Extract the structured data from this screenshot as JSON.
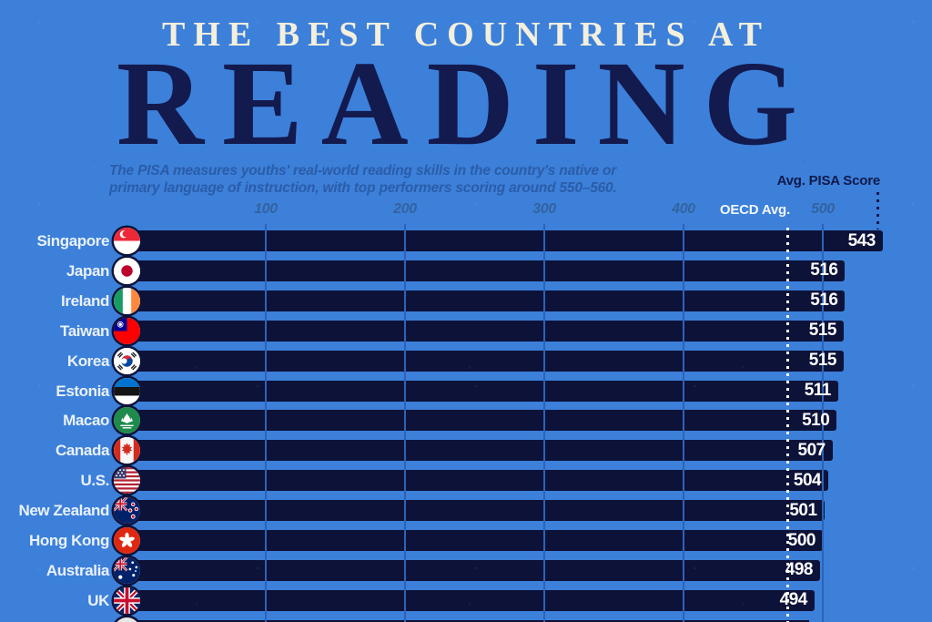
{
  "header": {
    "kicker": "THE BEST COUNTRIES AT",
    "title": "READING",
    "subtitle_line1": "The PISA measures youths' real-world reading skills in the country's native or",
    "subtitle_line2": "primary language of instruction, with top performers scoring around 550–560.",
    "axis_caption": "Avg. PISA Score"
  },
  "colors": {
    "background": "#3c80da",
    "bar": "#0d1238",
    "title_navy": "#131a4e",
    "kicker_cream": "#f4efdc",
    "subtitle_blue": "#2b5ca8",
    "gridline": "#2c63b8",
    "score_text": "#ffffff"
  },
  "chart_data": {
    "type": "bar",
    "orientation": "horizontal",
    "title": "THE BEST COUNTRIES AT READING",
    "value_axis_label": "Avg. PISA Score",
    "x_ticks": [
      100,
      200,
      300,
      400,
      500
    ],
    "xlim": [
      0,
      578
    ],
    "grid": true,
    "reference_line": {
      "label": "OECD Avg.",
      "value": 475
    },
    "categories": [
      "Singapore",
      "Japan",
      "Ireland",
      "Taiwan",
      "Korea",
      "Estonia",
      "Macao",
      "Canada",
      "U.S.",
      "New Zealand",
      "Hong Kong",
      "Australia",
      "UK"
    ],
    "values": [
      543,
      516,
      516,
      515,
      515,
      511,
      510,
      507,
      504,
      501,
      500,
      498,
      494
    ],
    "rows": [
      {
        "country": "Singapore",
        "flag": "sg",
        "value": 543
      },
      {
        "country": "Japan",
        "flag": "jp",
        "value": 516
      },
      {
        "country": "Ireland",
        "flag": "ie",
        "value": 516
      },
      {
        "country": "Taiwan",
        "flag": "tw",
        "value": 515
      },
      {
        "country": "Korea",
        "flag": "kr",
        "value": 515
      },
      {
        "country": "Estonia",
        "flag": "ee",
        "value": 511
      },
      {
        "country": "Macao",
        "flag": "mo",
        "value": 510
      },
      {
        "country": "Canada",
        "flag": "ca",
        "value": 507
      },
      {
        "country": "U.S.",
        "flag": "us",
        "value": 504
      },
      {
        "country": "New Zealand",
        "flag": "nz",
        "value": 501
      },
      {
        "country": "Hong Kong",
        "flag": "hk",
        "value": 500
      },
      {
        "country": "Australia",
        "flag": "au",
        "value": 498
      },
      {
        "country": "UK",
        "flag": "uk",
        "value": 494
      }
    ],
    "next_row_partially_visible": true
  }
}
